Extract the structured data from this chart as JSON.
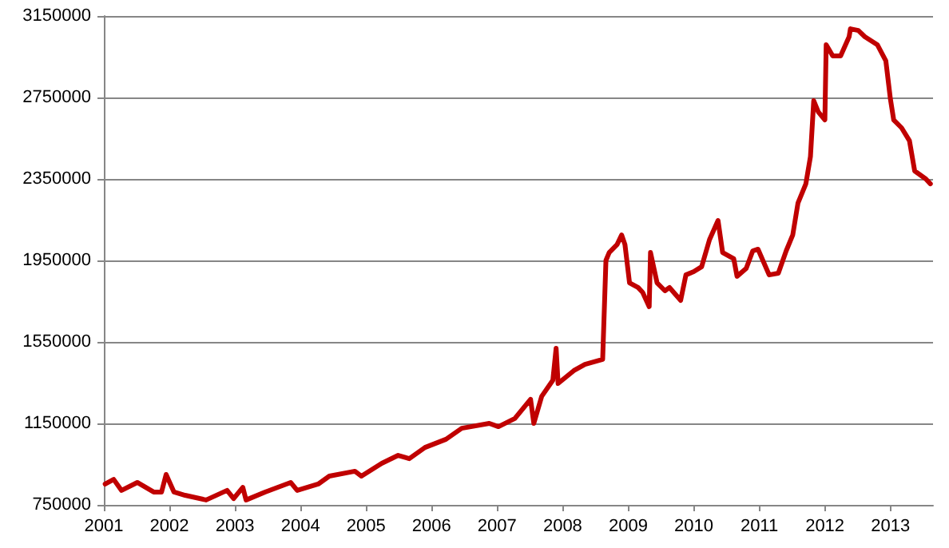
{
  "chart_data": {
    "type": "line",
    "x": [
      2001.02,
      2001.15,
      2001.27,
      2001.51,
      2001.76,
      2001.88,
      2001.95,
      2002.07,
      2002.24,
      2002.56,
      2002.88,
      2002.98,
      2003.12,
      2003.17,
      2003.46,
      2003.85,
      2003.95,
      2004.27,
      2004.44,
      2004.83,
      2004.93,
      2005.24,
      2005.49,
      2005.66,
      2005.9,
      2006.22,
      2006.46,
      2006.88,
      2007.02,
      2007.27,
      2007.51,
      2007.56,
      2007.68,
      2007.85,
      2007.9,
      2007.93,
      2008.17,
      2008.34,
      2008.61,
      2008.66,
      2008.71,
      2008.83,
      2008.9,
      2008.95,
      2009.02,
      2009.15,
      2009.22,
      2009.32,
      2009.34,
      2009.44,
      2009.56,
      2009.63,
      2009.8,
      2009.88,
      2010.0,
      2010.12,
      2010.24,
      2010.37,
      2010.44,
      2010.61,
      2010.66,
      2010.8,
      2010.9,
      2010.98,
      2011.15,
      2011.29,
      2011.41,
      2011.51,
      2011.59,
      2011.71,
      2011.78,
      2011.83,
      2011.9,
      2012.0,
      2012.02,
      2012.12,
      2012.24,
      2012.37,
      2012.39,
      2012.51,
      2012.61,
      2012.8,
      2012.93,
      2013.0,
      2013.05,
      2013.17,
      2013.29,
      2013.37,
      2013.54,
      2013.61
    ],
    "series": [
      {
        "color": "#c00000",
        "values": [
          852000,
          875000,
          821000,
          860000,
          813000,
          813000,
          899000,
          813000,
          797000,
          774000,
          821000,
          781000,
          836000,
          774000,
          813000,
          860000,
          821000,
          852000,
          891000,
          915000,
          891000,
          954000,
          993000,
          977000,
          1032000,
          1072000,
          1126000,
          1150000,
          1134000,
          1174000,
          1268000,
          1150000,
          1283000,
          1362000,
          1519000,
          1346000,
          1409000,
          1440000,
          1464000,
          1950000,
          1989000,
          2028000,
          2075000,
          2028000,
          1840000,
          1817000,
          1793000,
          1723000,
          1989000,
          1840000,
          1801000,
          1817000,
          1754000,
          1879000,
          1895000,
          1919000,
          2052000,
          2146000,
          1989000,
          1958000,
          1872000,
          1911000,
          1997000,
          2005000,
          1879000,
          1887000,
          1997000,
          2075000,
          2232000,
          2326000,
          2460000,
          2734000,
          2679000,
          2640000,
          3009000,
          2954000,
          2954000,
          3048000,
          3087000,
          3079000,
          3048000,
          3009000,
          2930000,
          2742000,
          2640000,
          2601000,
          2538000,
          2389000,
          2350000,
          2326000
        ]
      }
    ],
    "xlim": [
      2001,
      2013.65
    ],
    "xticks": [
      2001,
      2002,
      2003,
      2004,
      2005,
      2006,
      2007,
      2008,
      2009,
      2010,
      2011,
      2012,
      2013
    ],
    "ylim": [
      750000,
      3150000
    ],
    "yticks": [
      750000,
      1150000,
      1550000,
      1950000,
      2350000,
      2750000,
      3150000
    ],
    "grid": "y",
    "marker": "none",
    "line_style": "solid"
  }
}
